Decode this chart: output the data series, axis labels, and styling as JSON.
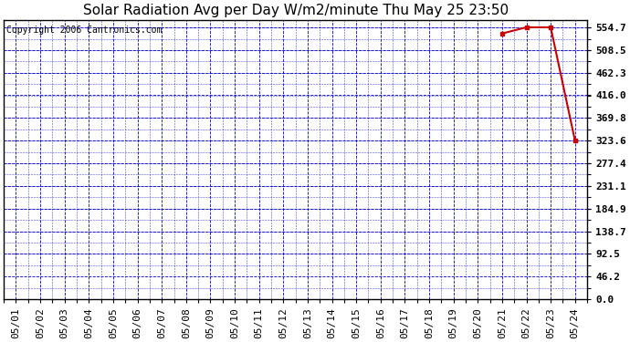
{
  "title": "Solar Radiation Avg per Day W/m2/minute Thu May 25 23:50",
  "copyright": "Copyright 2006 Cantronics.com",
  "background_color": "#ffffff",
  "plot_bg_color": "#ffffff",
  "grid_color": "#0000cc",
  "line_color": "#cc0000",
  "marker_color": "#cc0000",
  "x_labels": [
    "05/01",
    "05/02",
    "05/03",
    "05/04",
    "05/05",
    "05/06",
    "05/07",
    "05/08",
    "05/09",
    "05/10",
    "05/11",
    "05/12",
    "05/13",
    "05/14",
    "05/15",
    "05/16",
    "05/17",
    "05/18",
    "05/19",
    "05/20",
    "05/21",
    "05/22",
    "05/23",
    "05/24"
  ],
  "x_values": [
    1,
    2,
    3,
    4,
    5,
    6,
    7,
    8,
    9,
    10,
    11,
    12,
    13,
    14,
    15,
    16,
    17,
    18,
    19,
    20,
    21,
    22,
    23,
    24
  ],
  "y_data": [
    null,
    null,
    null,
    null,
    null,
    null,
    null,
    null,
    null,
    null,
    null,
    null,
    null,
    null,
    null,
    null,
    null,
    null,
    null,
    null,
    542.0,
    554.7,
    554.7,
    323.6
  ],
  "yticks": [
    0.0,
    46.2,
    92.5,
    138.7,
    184.9,
    231.1,
    277.4,
    323.6,
    369.8,
    416.0,
    462.3,
    508.5,
    554.7
  ],
  "ylim": [
    0.0,
    570.0
  ],
  "xlim": [
    0.5,
    24.5
  ],
  "title_fontsize": 11,
  "tick_fontsize": 8,
  "copyright_fontsize": 7
}
